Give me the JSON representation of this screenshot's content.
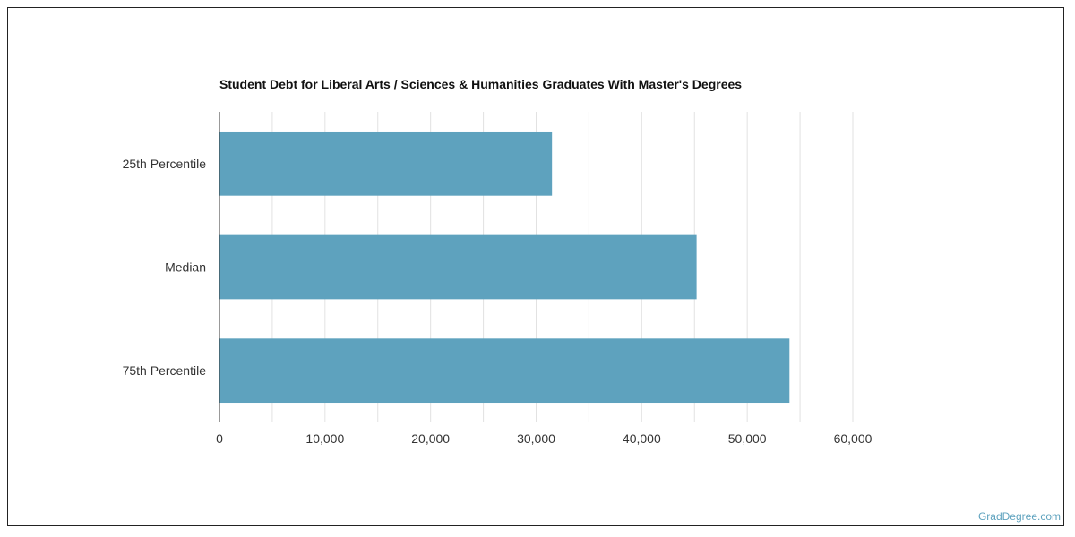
{
  "chart_data": {
    "type": "bar",
    "orientation": "horizontal",
    "title": "Student Debt for Liberal Arts / Sciences & Humanities Graduates With Master's Degrees",
    "categories": [
      "25th Percentile",
      "Median",
      "75th Percentile"
    ],
    "values": [
      31500,
      45200,
      54000
    ],
    "xlim": [
      0,
      60000
    ],
    "x_ticks": [
      0,
      10000,
      20000,
      30000,
      40000,
      50000,
      60000
    ],
    "x_tick_labels": [
      "0",
      "10,000",
      "20,000",
      "30,000",
      "40,000",
      "50,000",
      "60,000"
    ],
    "grid": "vertical",
    "legend": "none",
    "bar_color": "#5ea2be"
  },
  "credit": "GradDegree.com"
}
